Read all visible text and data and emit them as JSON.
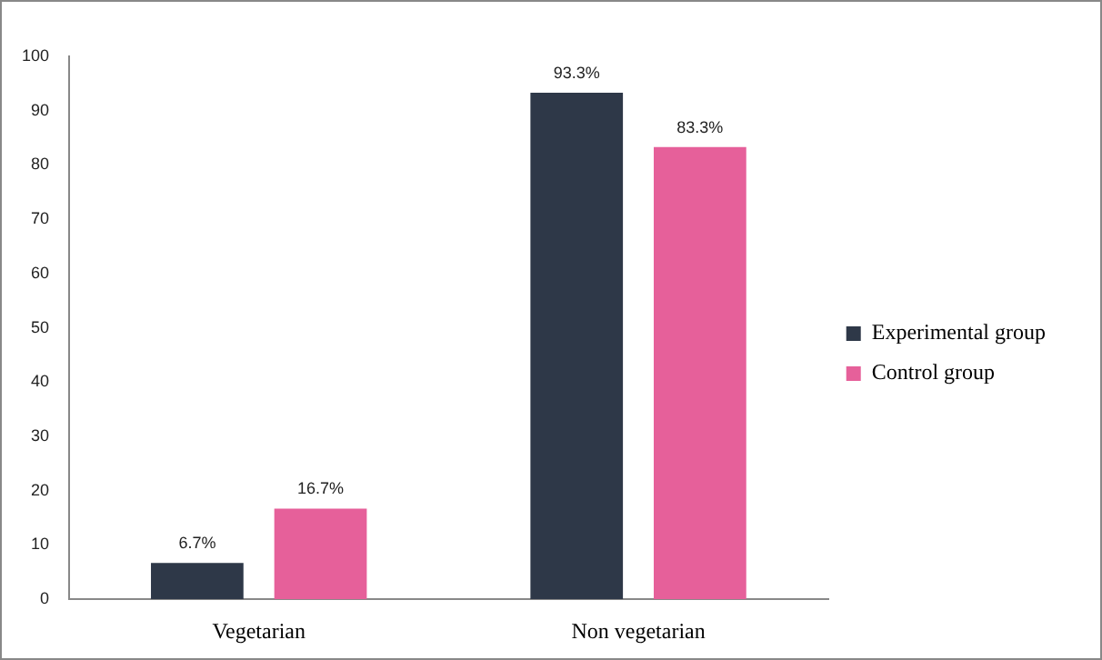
{
  "chart_data": {
    "type": "bar",
    "categories": [
      "Vegetarian",
      "Non vegetarian"
    ],
    "series": [
      {
        "name": "Experimental group",
        "color": "#2e3848",
        "values": [
          6.7,
          93.3
        ],
        "value_labels": [
          "6.7%",
          "93.3%"
        ]
      },
      {
        "name": "Control group",
        "color": "#e6609a",
        "values": [
          16.7,
          83.3
        ],
        "value_labels": [
          "16.7%",
          "83.3%"
        ]
      }
    ],
    "ylim": [
      0,
      100
    ],
    "yticks": [
      0,
      10,
      20,
      30,
      40,
      50,
      60,
      70,
      80,
      90,
      100
    ],
    "grid": false,
    "legend": "right"
  }
}
